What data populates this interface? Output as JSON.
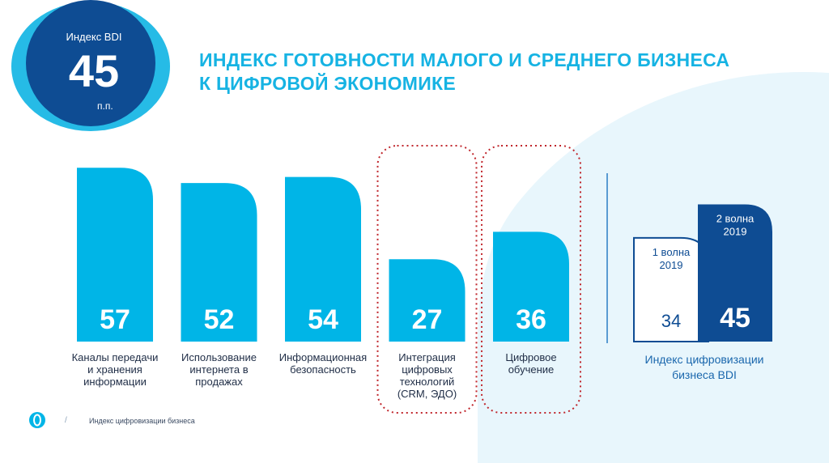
{
  "badge": {
    "label": "Индекс BDI",
    "value": "45",
    "unit": "п.п."
  },
  "title": {
    "line1": "ИНДЕКС ГОТОВНОСТИ МАЛОГО И СРЕДНЕГО БИЗНЕСА",
    "line2": "К ЦИФРОВОЙ ЭКОНОМИКЕ"
  },
  "footer": {
    "slash": "/",
    "text": "Индекс цифровизации бизнеса",
    "logo_icon": "bank-logo-icon"
  },
  "colors": {
    "light_blue": "#00b5e7",
    "dark_blue": "#0e4c93",
    "highlight_outline": "#c0262c",
    "background_shape": "#e3f4fb"
  },
  "chart_data": [
    {
      "type": "bar",
      "categories": [
        "Каналы передачи и хранения информации",
        "Использование интернета в продажах",
        "Информационная безопасность",
        "Интеграция цифровых технологий (CRM, ЭДО)",
        "Цифровое обучение"
      ],
      "category_lines": [
        [
          "Каналы передачи",
          "и хранения",
          "информации"
        ],
        [
          "Использование",
          "интернета в",
          "продажах"
        ],
        [
          "Информационная",
          "безопасность"
        ],
        [
          "Интеграция",
          "цифровых",
          "технологий",
          "(CRM, ЭДО)"
        ],
        [
          "Цифровое",
          "обучение"
        ]
      ],
      "values": [
        57,
        52,
        54,
        27,
        36
      ],
      "highlighted": [
        false,
        false,
        false,
        true,
        true
      ],
      "ylim": [
        0,
        60
      ],
      "grid": false
    },
    {
      "type": "bar",
      "categories": [
        "1 волна 2019",
        "2 волна 2019"
      ],
      "category_lines": [
        [
          "1 волна",
          "2019"
        ],
        [
          "2 волна",
          "2019"
        ]
      ],
      "values": [
        34,
        45
      ],
      "caption_lines": [
        "Индекс цифровизации",
        "бизнеса BDI"
      ],
      "ylim": [
        0,
        60
      ],
      "grid": false
    }
  ]
}
